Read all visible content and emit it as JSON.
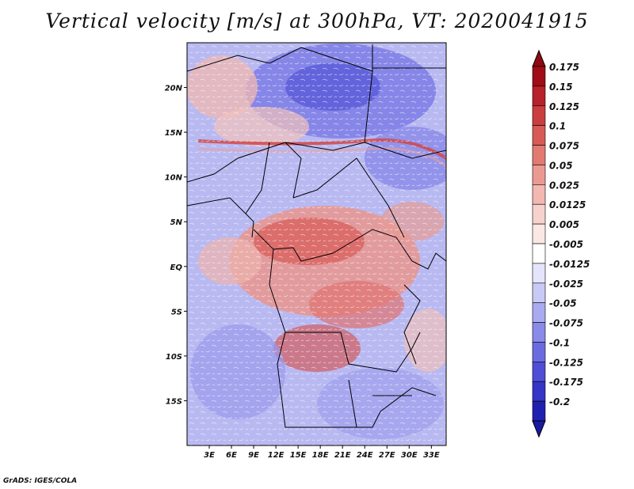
{
  "title": "Vertical velocity [m/s] at 300hPa, VT: 2020041915",
  "credit": "GrADS: IGES/COLA",
  "map": {
    "lon_range": [
      0,
      35
    ],
    "lat_range": [
      -20,
      25
    ],
    "lat_ticks": [
      {
        "lat": 20,
        "label": "20N"
      },
      {
        "lat": 15,
        "label": "15N"
      },
      {
        "lat": 10,
        "label": "10N"
      },
      {
        "lat": 5,
        "label": "5N"
      },
      {
        "lat": 0,
        "label": "EQ"
      },
      {
        "lat": -5,
        "label": "5S"
      },
      {
        "lat": -10,
        "label": "10S"
      },
      {
        "lat": -15,
        "label": "15S"
      }
    ],
    "lon_ticks": [
      {
        "lon": 3,
        "label": "3E"
      },
      {
        "lon": 6,
        "label": "6E"
      },
      {
        "lon": 9,
        "label": "9E"
      },
      {
        "lon": 12,
        "label": "12E"
      },
      {
        "lon": 15,
        "label": "15E"
      },
      {
        "lon": 18,
        "label": "18E"
      },
      {
        "lon": 21,
        "label": "21E"
      },
      {
        "lon": 24,
        "label": "24E"
      },
      {
        "lon": 27,
        "label": "27E"
      },
      {
        "lon": 30,
        "label": "30E"
      },
      {
        "lon": 33,
        "label": "33E"
      }
    ]
  },
  "colorbar": {
    "levels": [
      {
        "label": "0.175",
        "color": "#a00d16"
      },
      {
        "label": "0.15",
        "color": "#b8222a"
      },
      {
        "label": "0.125",
        "color": "#cb3e3e"
      },
      {
        "label": "0.1",
        "color": "#d85a56"
      },
      {
        "label": "0.075",
        "color": "#e27a72"
      },
      {
        "label": "0.05",
        "color": "#eb9a92"
      },
      {
        "label": "0.025",
        "color": "#f2b8b1"
      },
      {
        "label": "0.0125",
        "color": "#f7d2cd"
      },
      {
        "label": "0.005",
        "color": "#fbe7e4"
      },
      {
        "label": "-0.005",
        "color": "#ffffff"
      },
      {
        "label": "-0.0125",
        "color": "#e4e4fb"
      },
      {
        "label": "-0.025",
        "color": "#c9c9f6"
      },
      {
        "label": "-0.05",
        "color": "#aaaaf0"
      },
      {
        "label": "-0.075",
        "color": "#8a8ae8"
      },
      {
        "label": "-0.1",
        "color": "#6b6be0"
      },
      {
        "label": "-0.125",
        "color": "#4e4ed6"
      },
      {
        "label": "-0.175",
        "color": "#3535c6"
      },
      {
        "label": "-0.2",
        "color": "#2020b0"
      }
    ],
    "top_arrow_color": "#8e0a12",
    "bottom_arrow_color": "#1a1aa0"
  }
}
